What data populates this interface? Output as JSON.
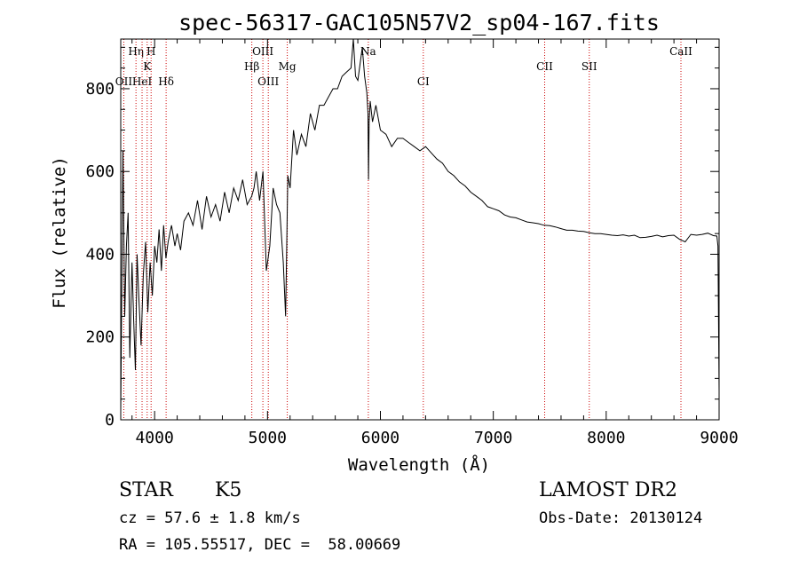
{
  "chart_data": {
    "type": "line",
    "title": "spec-56317-GAC105N57V2_sp04-167.fits",
    "xlabel": "Wavelength (Å)",
    "ylabel": "Flux (relative)",
    "xlim": [
      3700,
      9000
    ],
    "ylim": [
      0,
      920
    ],
    "xticks": [
      4000,
      5000,
      6000,
      7000,
      8000,
      9000
    ],
    "yticks": [
      0,
      200,
      400,
      600,
      800
    ],
    "grid": false,
    "line_color": "#000000",
    "marker_color": "#cc0000",
    "series": [
      {
        "x": [
          3700,
          3710,
          3720,
          3735,
          3750,
          3765,
          3780,
          3800,
          3815,
          3830,
          3845,
          3860,
          3880,
          3900,
          3920,
          3940,
          3960,
          3980,
          4000,
          4020,
          4040,
          4060,
          4080,
          4100,
          4120,
          4150,
          4180,
          4200,
          4230,
          4260,
          4300,
          4340,
          4380,
          4420,
          4460,
          4500,
          4540,
          4580,
          4620,
          4660,
          4700,
          4740,
          4780,
          4820,
          4860,
          4880,
          4900,
          4930,
          4960,
          4990,
          5020,
          5050,
          5080,
          5110,
          5140,
          5160,
          5180,
          5200,
          5230,
          5260,
          5300,
          5340,
          5380,
          5420,
          5460,
          5500,
          5540,
          5580,
          5620,
          5660,
          5700,
          5740,
          5760,
          5780,
          5800,
          5820,
          5840,
          5860,
          5880,
          5890,
          5895,
          5900,
          5910,
          5930,
          5960,
          6000,
          6050,
          6100,
          6150,
          6200,
          6250,
          6300,
          6350,
          6400,
          6450,
          6500,
          6550,
          6600,
          6650,
          6700,
          6750,
          6800,
          6850,
          6900,
          6950,
          7000,
          7050,
          7100,
          7150,
          7200,
          7250,
          7300,
          7350,
          7400,
          7450,
          7500,
          7550,
          7600,
          7650,
          7700,
          7750,
          7800,
          7850,
          7900,
          7950,
          8000,
          8050,
          8100,
          8150,
          8200,
          8250,
          8300,
          8350,
          8400,
          8450,
          8500,
          8550,
          8600,
          8650,
          8700,
          8750,
          8800,
          8850,
          8900,
          8950,
          8980,
          8990,
          9000
        ],
        "y": [
          20,
          350,
          650,
          250,
          420,
          500,
          150,
          380,
          240,
          120,
          400,
          300,
          180,
          350,
          430,
          260,
          380,
          300,
          420,
          380,
          460,
          360,
          470,
          390,
          430,
          470,
          420,
          450,
          410,
          480,
          500,
          470,
          530,
          460,
          540,
          490,
          520,
          480,
          550,
          500,
          560,
          530,
          580,
          520,
          540,
          560,
          600,
          530,
          600,
          360,
          420,
          560,
          520,
          500,
          380,
          250,
          590,
          560,
          700,
          640,
          690,
          660,
          740,
          700,
          760,
          760,
          780,
          800,
          800,
          830,
          840,
          850,
          920,
          830,
          820,
          860,
          900,
          830,
          790,
          740,
          580,
          720,
          770,
          720,
          760,
          700,
          690,
          660,
          680,
          680,
          670,
          660,
          650,
          660,
          645,
          630,
          620,
          600,
          590,
          575,
          565,
          550,
          540,
          530,
          515,
          510,
          505,
          495,
          490,
          488,
          483,
          478,
          476,
          474,
          470,
          469,
          466,
          462,
          458,
          458,
          456,
          455,
          452,
          450,
          450,
          448,
          446,
          445,
          447,
          444,
          446,
          440,
          441,
          443,
          446,
          442,
          445,
          446,
          436,
          430,
          448,
          446,
          448,
          451,
          445,
          444,
          420,
          70
        ]
      }
    ],
    "line_markers": [
      {
        "label": "OII",
        "x": 3727,
        "row": 3
      },
      {
        "label": "Hη",
        "x": 3835,
        "row": 1
      },
      {
        "label": "HeI",
        "x": 3889,
        "row": 3
      },
      {
        "label": "K",
        "x": 3934,
        "row": 2
      },
      {
        "label": "H",
        "x": 3969,
        "row": 1
      },
      {
        "label": "Hδ",
        "x": 4102,
        "row": 3
      },
      {
        "label": "Hβ",
        "x": 4861,
        "row": 2
      },
      {
        "label": "OIII",
        "x": 4959,
        "row": 1
      },
      {
        "label": "OIII",
        "x": 5007,
        "row": 3
      },
      {
        "label": "Mg",
        "x": 5175,
        "row": 2
      },
      {
        "label": "Na",
        "x": 5893,
        "row": 1
      },
      {
        "label": "CI",
        "x": 6380,
        "row": 3
      },
      {
        "label": "CII",
        "x": 7455,
        "row": 2
      },
      {
        "label": "SII",
        "x": 7850,
        "row": 2
      },
      {
        "label": "CaII",
        "x": 8662,
        "row": 1
      }
    ]
  },
  "info": {
    "object_class": "STAR",
    "subclass": "K5",
    "survey": "LAMOST DR2",
    "redshift": "cz = 57.6 ± 1.8 km/s",
    "obs_date": "Obs-Date: 20130124",
    "coords": "RA = 105.55517, DEC =  58.00669"
  }
}
